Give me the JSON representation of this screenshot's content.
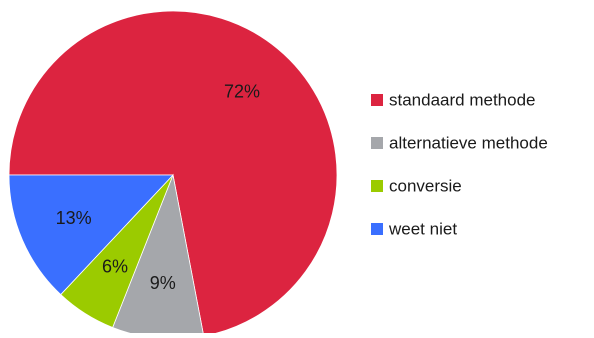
{
  "chart_data": {
    "type": "pie",
    "categories": [
      "standaard methode",
      "alternatieve methode",
      "conversie",
      "weet niet"
    ],
    "values": [
      72,
      9,
      6,
      13
    ],
    "value_labels": [
      "72%",
      "9%",
      "6%",
      "13%"
    ],
    "colors": [
      "#dc2440",
      "#a5a7ab",
      "#9bcb00",
      "#3a6fff"
    ],
    "legend_position": "right"
  }
}
